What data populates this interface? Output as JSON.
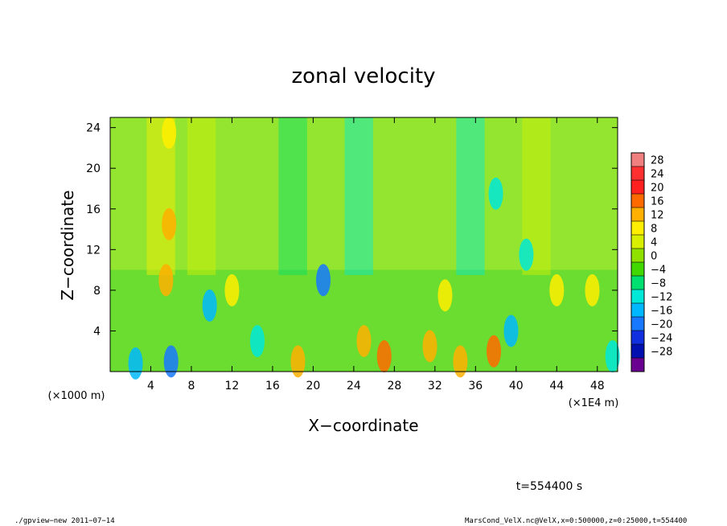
{
  "chart_data": {
    "type": "heatmap",
    "title": "zonal velocity",
    "xlabel": "X−coordinate",
    "ylabel": "Z−coordinate",
    "x_unit_left": "(×1000 m)",
    "x_unit_right": "(×1E4 m)",
    "xlim": [
      0,
      50
    ],
    "ylim": [
      0,
      25
    ],
    "x_ticks": [
      4,
      8,
      12,
      16,
      20,
      24,
      28,
      32,
      36,
      40,
      44,
      48
    ],
    "x_tick_labels": [
      "4",
      "8",
      "12",
      "16",
      "20",
      "24",
      "28",
      "32",
      "36",
      "40",
      "44",
      "48"
    ],
    "y_ticks": [
      4,
      8,
      12,
      16,
      20,
      24
    ],
    "y_tick_labels": [
      "4",
      "8",
      "12",
      "16",
      "20",
      "24"
    ],
    "colorbar": {
      "levels": [
        28,
        24,
        20,
        16,
        12,
        8,
        4,
        0,
        -4,
        -8,
        -12,
        -16,
        -20,
        -24,
        -28
      ],
      "labels": [
        "28",
        "24",
        "20",
        "16",
        "12",
        "8",
        "4",
        "0",
        "−4",
        "−8",
        "−12",
        "−16",
        "−20",
        "−24",
        "−28"
      ],
      "colors": [
        "#f08080",
        "#ff3030",
        "#ff2020",
        "#ff6a00",
        "#ffb000",
        "#ffee00",
        "#d8f000",
        "#90e000",
        "#40d800",
        "#00e070",
        "#00e8d8",
        "#00b8ff",
        "#1878ff",
        "#1030e0",
        "#0010b0",
        "#6a0090"
      ]
    },
    "field_description": "Mostly 0 to 8 (green/yellow) in the upper layer; strong small-scale +/- anomalies (red to blue) concentrated below z=10",
    "features": [
      {
        "x": 5.8,
        "z": 14.5,
        "value": 16
      },
      {
        "x": 5.5,
        "z": 9.0,
        "value": 14
      },
      {
        "x": 21.0,
        "z": 9.0,
        "value": -16
      },
      {
        "x": 5.8,
        "z": 23.5,
        "value": 10
      },
      {
        "x": 2.5,
        "z": 0.8,
        "value": -14
      },
      {
        "x": 6.0,
        "z": 1.0,
        "value": -18
      },
      {
        "x": 9.8,
        "z": 6.5,
        "value": -14
      },
      {
        "x": 14.5,
        "z": 3.0,
        "value": -10
      },
      {
        "x": 18.5,
        "z": 1.0,
        "value": 16
      },
      {
        "x": 27.0,
        "z": 1.5,
        "value": 18
      },
      {
        "x": 31.5,
        "z": 2.5,
        "value": 14
      },
      {
        "x": 34.5,
        "z": 1.0,
        "value": 16
      },
      {
        "x": 37.8,
        "z": 2.0,
        "value": 20
      },
      {
        "x": 39.5,
        "z": 4.0,
        "value": -12
      },
      {
        "x": 38.0,
        "z": 17.5,
        "value": -10
      },
      {
        "x": 41.0,
        "z": 11.5,
        "value": -8
      },
      {
        "x": 44.0,
        "z": 8.0,
        "value": 12
      },
      {
        "x": 47.5,
        "z": 8.0,
        "value": 12
      },
      {
        "x": 49.5,
        "z": 1.5,
        "value": -10
      },
      {
        "x": 25.0,
        "z": 3.0,
        "value": 14
      },
      {
        "x": 12.0,
        "z": 8.0,
        "value": 10
      },
      {
        "x": 33.0,
        "z": 7.5,
        "value": 12
      }
    ]
  },
  "time_label": "t=554400 s",
  "footer": {
    "left": "./gpview−new   2011−07−14",
    "right": "MarsCond_VelX.nc@VelX,x=0:500000,z=0:25000,t=554400"
  }
}
